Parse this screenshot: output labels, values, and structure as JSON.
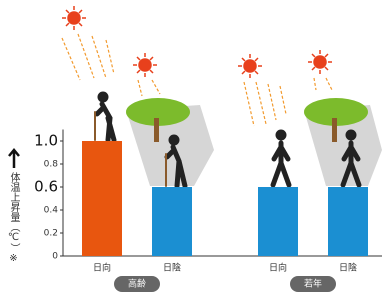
{
  "chart_data": {
    "type": "bar",
    "y_label": "体温上昇量（℃）※",
    "categories": [
      "日向",
      "日陰",
      "日向",
      "日陰"
    ],
    "groups": [
      "高齢",
      "若年"
    ],
    "values": [
      1.0,
      0.6,
      0.6,
      0.6
    ],
    "colors": [
      "#e8560f",
      "#1b8fd2",
      "#1b8fd2",
      "#1b8fd2"
    ],
    "ylim": [
      0,
      1.1
    ],
    "yticks": [
      0,
      0.2,
      0.4,
      0.6,
      0.8,
      {
        "value": 1,
        "label": "1.0"
      }
    ]
  }
}
